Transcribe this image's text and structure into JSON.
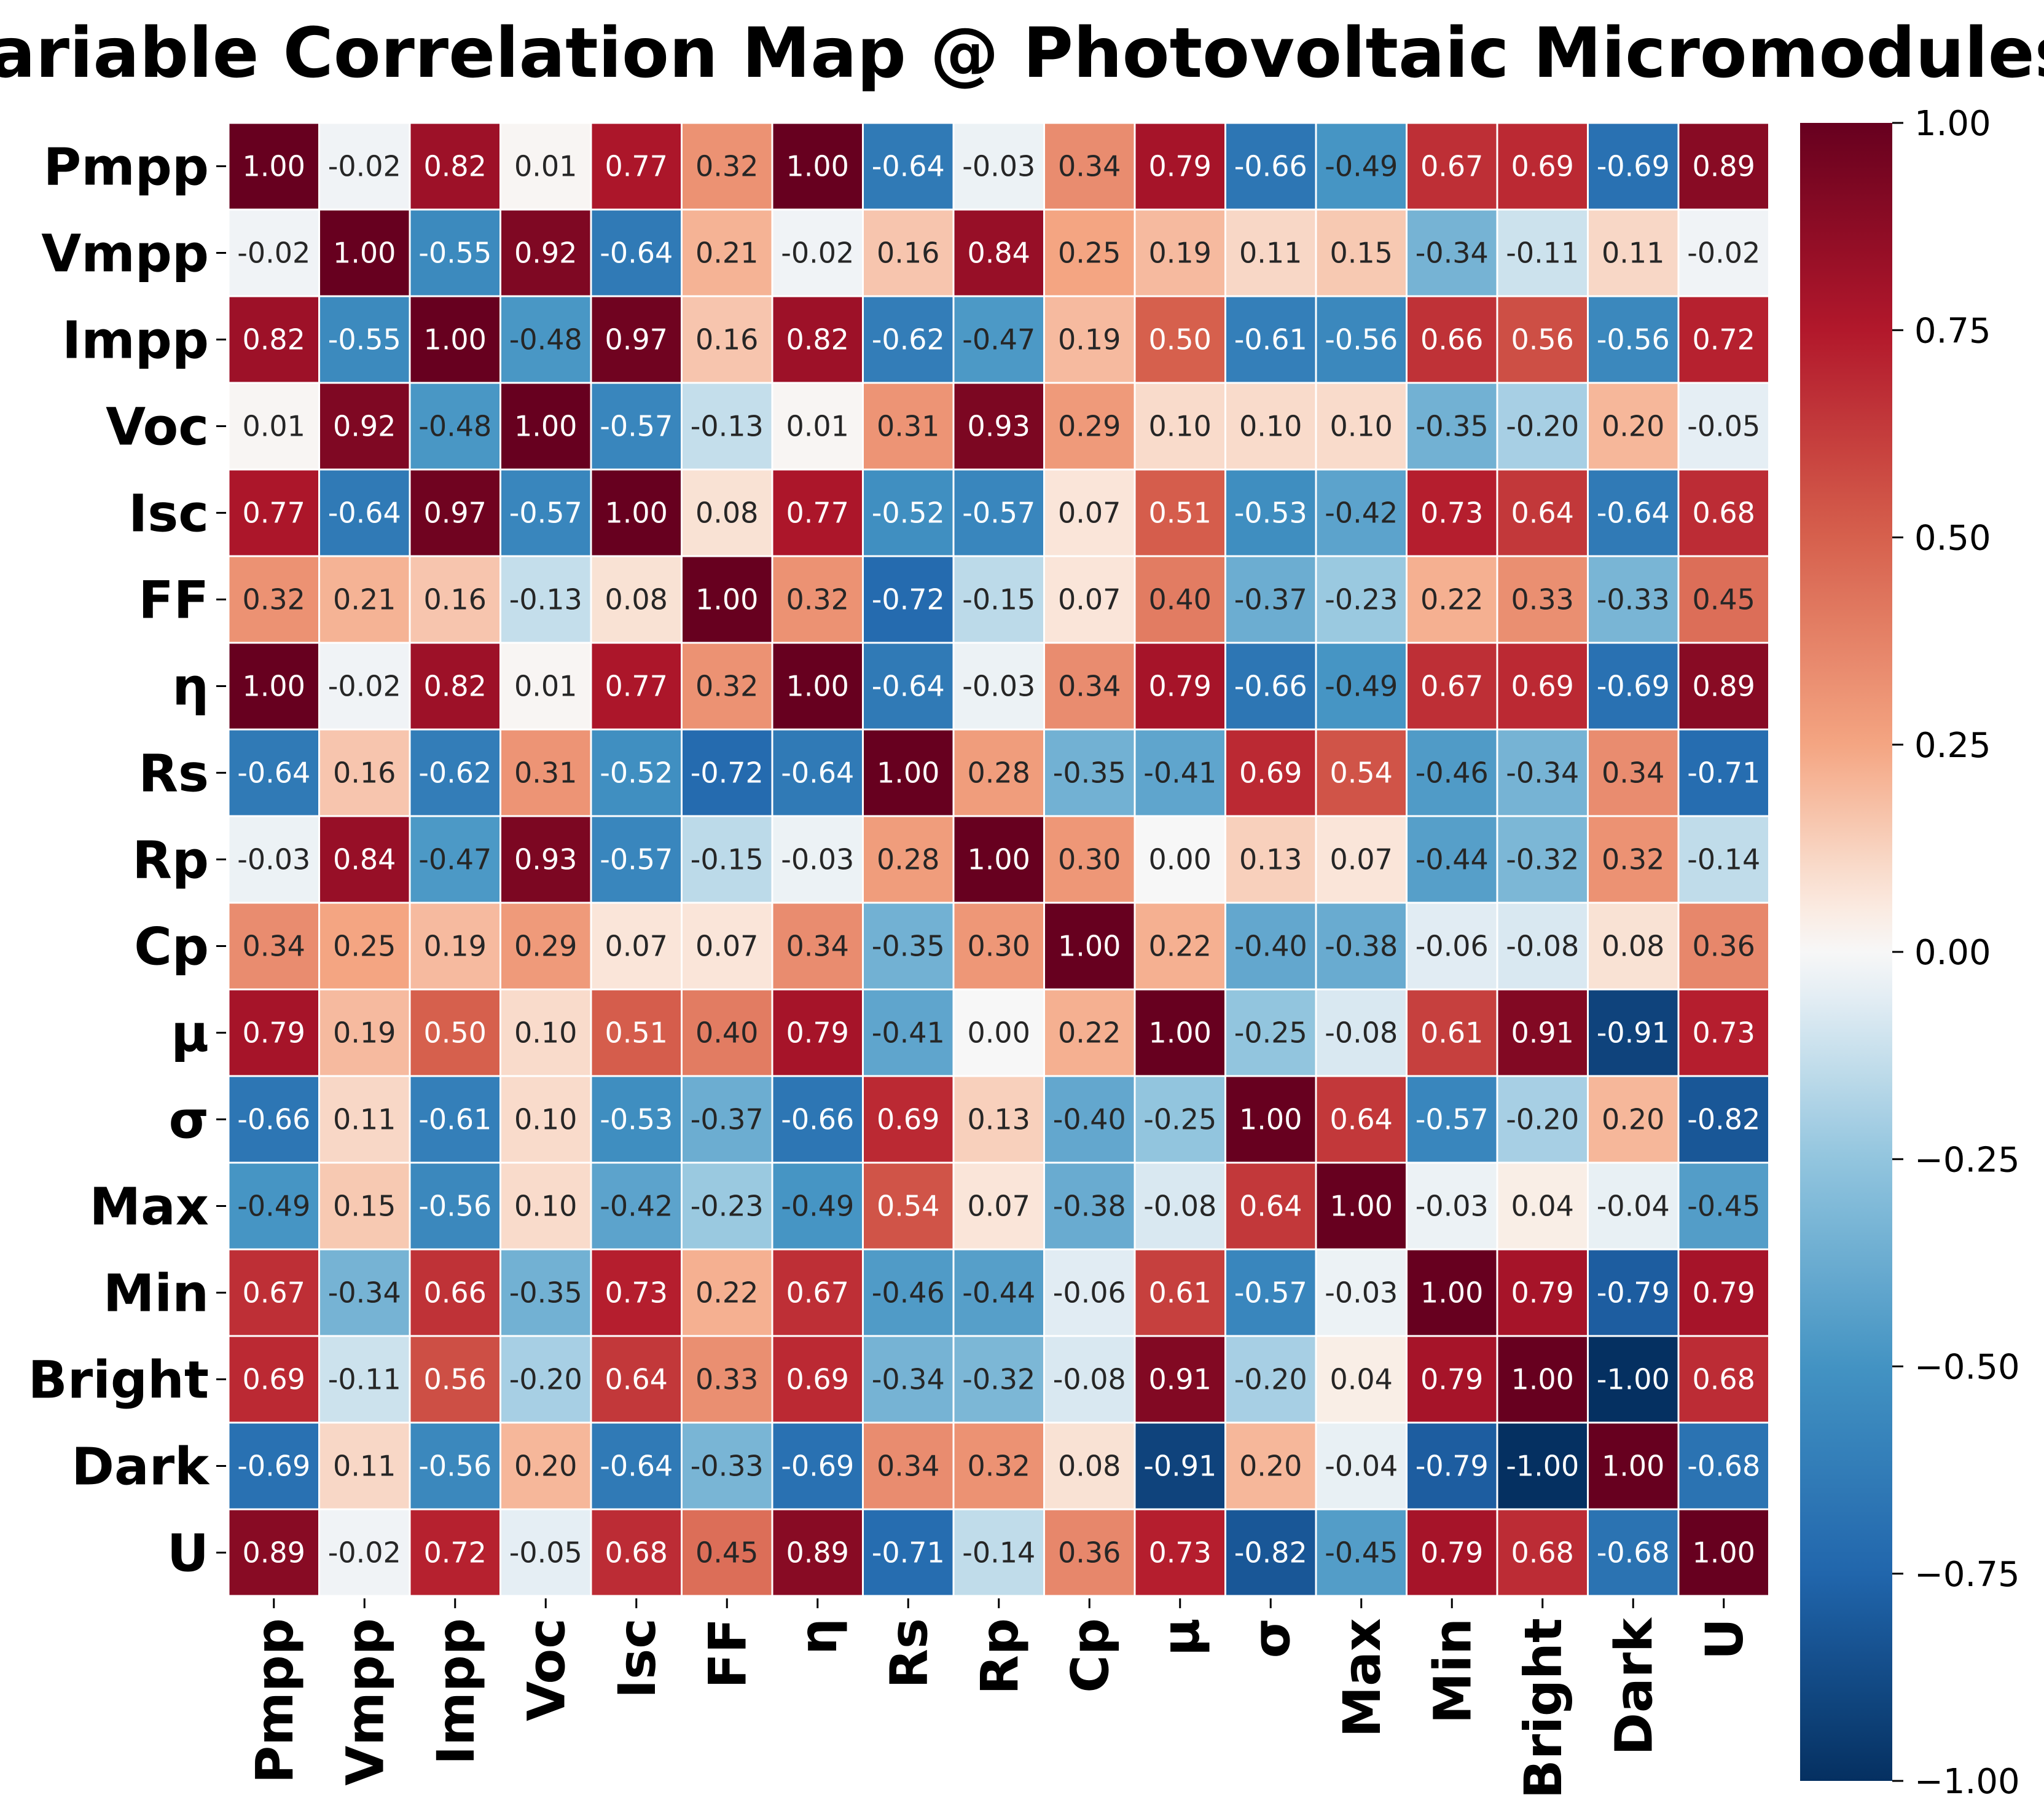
{
  "chart_data": {
    "type": "heatmap",
    "title": "Variable Correlation Map @ Photovoltaic Micromodules",
    "variables": [
      "Pmpp",
      "Vmpp",
      "Impp",
      "Voc",
      "Isc",
      "FF",
      "η",
      "Rs",
      "Rp",
      "Cp",
      "μ",
      "σ",
      "Max",
      "Min",
      "Bright",
      "Dark",
      "U"
    ],
    "matrix": [
      [
        1.0,
        -0.02,
        0.82,
        0.01,
        0.77,
        0.32,
        1.0,
        -0.64,
        -0.03,
        0.34,
        0.79,
        -0.66,
        -0.49,
        0.67,
        0.69,
        -0.69,
        0.89
      ],
      [
        -0.02,
        1.0,
        -0.55,
        0.92,
        -0.64,
        0.21,
        -0.02,
        0.16,
        0.84,
        0.25,
        0.19,
        0.11,
        0.15,
        -0.34,
        -0.11,
        0.11,
        -0.02
      ],
      [
        0.82,
        -0.55,
        1.0,
        -0.48,
        0.97,
        0.16,
        0.82,
        -0.62,
        -0.47,
        0.19,
        0.5,
        -0.61,
        -0.56,
        0.66,
        0.56,
        -0.56,
        0.72
      ],
      [
        0.01,
        0.92,
        -0.48,
        1.0,
        -0.57,
        -0.13,
        0.01,
        0.31,
        0.93,
        0.29,
        0.1,
        0.1,
        0.1,
        -0.35,
        -0.2,
        0.2,
        -0.05
      ],
      [
        0.77,
        -0.64,
        0.97,
        -0.57,
        1.0,
        0.08,
        0.77,
        -0.52,
        -0.57,
        0.07,
        0.51,
        -0.53,
        -0.42,
        0.73,
        0.64,
        -0.64,
        0.68
      ],
      [
        0.32,
        0.21,
        0.16,
        -0.13,
        0.08,
        1.0,
        0.32,
        -0.72,
        -0.15,
        0.07,
        0.4,
        -0.37,
        -0.23,
        0.22,
        0.33,
        -0.33,
        0.45
      ],
      [
        1.0,
        -0.02,
        0.82,
        0.01,
        0.77,
        0.32,
        1.0,
        -0.64,
        -0.03,
        0.34,
        0.79,
        -0.66,
        -0.49,
        0.67,
        0.69,
        -0.69,
        0.89
      ],
      [
        -0.64,
        0.16,
        -0.62,
        0.31,
        -0.52,
        -0.72,
        -0.64,
        1.0,
        0.28,
        -0.35,
        -0.41,
        0.69,
        0.54,
        -0.46,
        -0.34,
        0.34,
        -0.71
      ],
      [
        -0.03,
        0.84,
        -0.47,
        0.93,
        -0.57,
        -0.15,
        -0.03,
        0.28,
        1.0,
        0.3,
        0.0,
        0.13,
        0.07,
        -0.44,
        -0.32,
        0.32,
        -0.14
      ],
      [
        0.34,
        0.25,
        0.19,
        0.29,
        0.07,
        0.07,
        0.34,
        -0.35,
        0.3,
        1.0,
        0.22,
        -0.4,
        -0.38,
        -0.06,
        -0.08,
        0.08,
        0.36
      ],
      [
        0.79,
        0.19,
        0.5,
        0.1,
        0.51,
        0.4,
        0.79,
        -0.41,
        0.0,
        0.22,
        1.0,
        -0.25,
        -0.08,
        0.61,
        0.91,
        -0.91,
        0.73
      ],
      [
        -0.66,
        0.11,
        -0.61,
        0.1,
        -0.53,
        -0.37,
        -0.66,
        0.69,
        0.13,
        -0.4,
        -0.25,
        1.0,
        0.64,
        -0.57,
        -0.2,
        0.2,
        -0.82
      ],
      [
        -0.49,
        0.15,
        -0.56,
        0.1,
        -0.42,
        -0.23,
        -0.49,
        0.54,
        0.07,
        -0.38,
        -0.08,
        0.64,
        1.0,
        -0.03,
        0.04,
        -0.04,
        -0.45
      ],
      [
        0.67,
        -0.34,
        0.66,
        -0.35,
        0.73,
        0.22,
        0.67,
        -0.46,
        -0.44,
        -0.06,
        0.61,
        -0.57,
        -0.03,
        1.0,
        0.79,
        -0.79,
        0.79
      ],
      [
        0.69,
        -0.11,
        0.56,
        -0.2,
        0.64,
        0.33,
        0.69,
        -0.34,
        -0.32,
        -0.08,
        0.91,
        -0.2,
        0.04,
        0.79,
        1.0,
        -1.0,
        0.68
      ],
      [
        -0.69,
        0.11,
        -0.56,
        0.2,
        -0.64,
        -0.33,
        -0.69,
        0.34,
        0.32,
        0.08,
        -0.91,
        0.2,
        -0.04,
        -0.79,
        -1.0,
        1.0,
        -0.68
      ],
      [
        0.89,
        -0.02,
        0.72,
        -0.05,
        0.68,
        0.45,
        0.89,
        -0.71,
        -0.14,
        0.36,
        0.73,
        -0.82,
        -0.45,
        0.79,
        0.68,
        -0.68,
        1.0
      ]
    ],
    "value_format": "2 decimals",
    "colormap": "RdBu_r",
    "colorbar": {
      "range": [
        -1.0,
        1.0
      ],
      "ticks": [
        1.0,
        0.75,
        0.5,
        0.25,
        0.0,
        -0.25,
        -0.5,
        -0.75,
        -1.0
      ],
      "tick_labels": [
        "1.00",
        "0.75",
        "0.50",
        "0.25",
        "0.00",
        "−0.25",
        "−0.50",
        "−0.75",
        "−1.00"
      ]
    },
    "cell_border_color": "#ffffff"
  }
}
